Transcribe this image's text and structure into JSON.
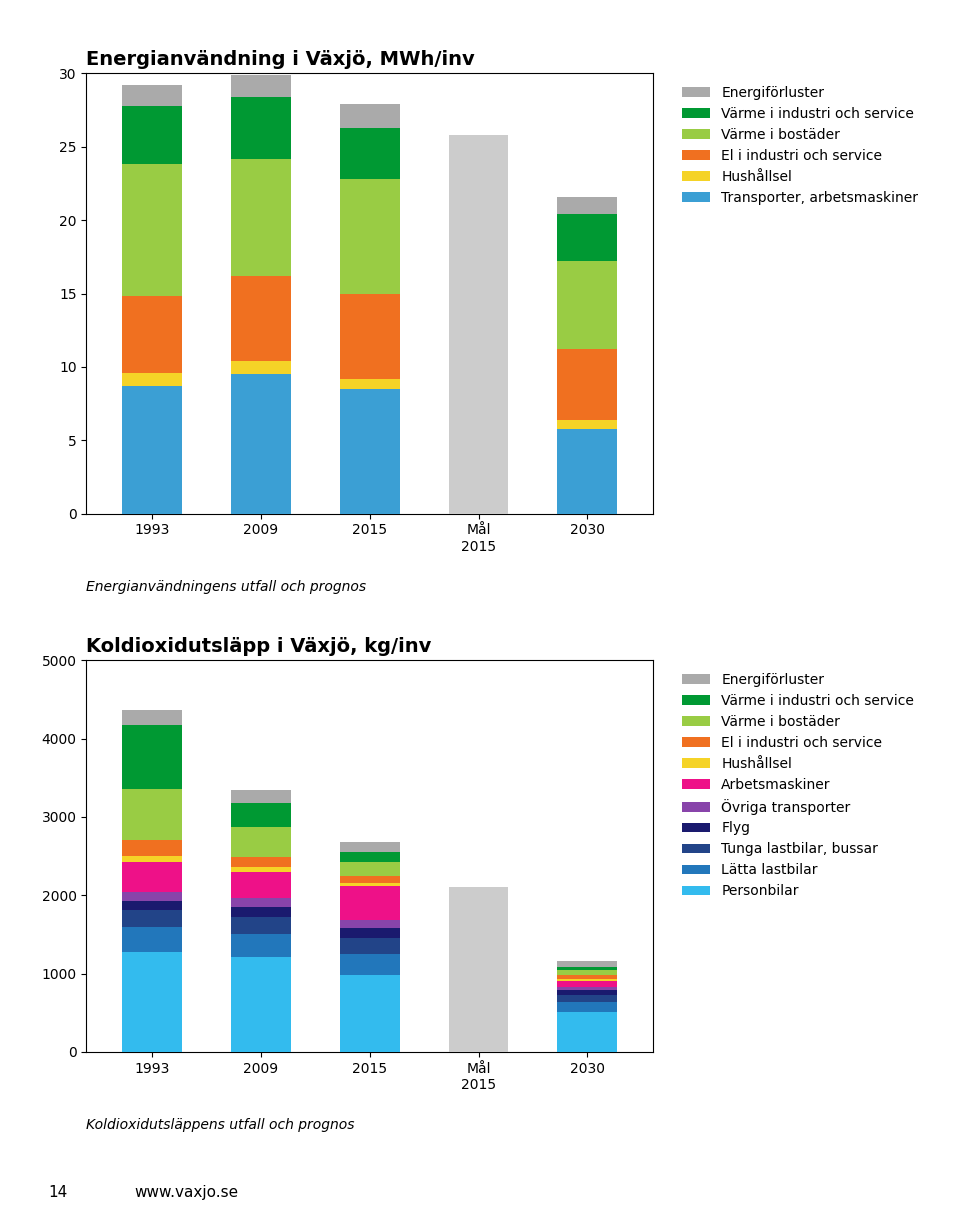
{
  "chart_data": [
    {
      "type": "bar",
      "stacked": true,
      "legend": "upper left",
      "title": "Energianvändning i Växjö, MWh/inv",
      "subtitle": "Energianvändningens utfall och prognos",
      "categories": [
        "1993",
        "2009",
        "2015",
        "Mål\n2015",
        "2030"
      ],
      "ylim": [
        0,
        30
      ],
      "yticks": [
        0,
        5,
        10,
        15,
        20,
        25,
        30
      ],
      "series": [
        {
          "name": "Transporter, arbetsmaskiner",
          "color": "#3b9fd4",
          "values": [
            8.7,
            9.5,
            8.5,
            0,
            5.8
          ]
        },
        {
          "name": "Hushållsel",
          "color": "#f5d327",
          "values": [
            0.9,
            0.9,
            0.7,
            0,
            0.6
          ]
        },
        {
          "name": "El i industri och service",
          "color": "#f07020",
          "values": [
            5.2,
            5.8,
            5.8,
            0,
            4.8
          ]
        },
        {
          "name": "Värme i bostäder",
          "color": "#99cc44",
          "values": [
            9.0,
            8.0,
            7.8,
            0,
            6.0
          ]
        },
        {
          "name": "Värme i industri och service",
          "color": "#009933",
          "values": [
            4.0,
            4.2,
            3.5,
            0,
            3.2
          ]
        },
        {
          "name": "Energiförluster",
          "color": "#aaaaaa",
          "values": [
            1.4,
            1.5,
            1.6,
            0,
            1.2
          ]
        },
        {
          "color": "#cccccc",
          "values": [
            null,
            null,
            null,
            25.8,
            null
          ]
        }
      ]
    },
    {
      "type": "bar",
      "stacked": true,
      "legend": "upper left",
      "title": "Koldioxidutsläpp i Växjö, kg/inv",
      "subtitle": "Koldioxidutsläppens utfall och prognos",
      "categories": [
        "1993",
        "2009",
        "2015",
        "Mål\n2015",
        "2030"
      ],
      "ylim": [
        0,
        5000
      ],
      "yticks": [
        0,
        1000,
        2000,
        3000,
        4000,
        5000
      ],
      "series": [
        {
          "name": "Personbilar",
          "color": "#33bbee",
          "values": [
            1280,
            1210,
            980,
            0,
            510
          ]
        },
        {
          "name": "Lätta lastbilar",
          "color": "#2277bb",
          "values": [
            320,
            290,
            270,
            0,
            130
          ]
        },
        {
          "name": "Tunga lastbilar, bussar",
          "color": "#224488",
          "values": [
            210,
            220,
            200,
            0,
            90
          ]
        },
        {
          "name": "Flyg",
          "color": "#1a1a6e",
          "values": [
            120,
            130,
            130,
            0,
            55
          ]
        },
        {
          "name": "Övriga transporter",
          "color": "#8844aa",
          "values": [
            110,
            110,
            110,
            0,
            45
          ]
        },
        {
          "name": "Arbetsmaskiner",
          "color": "#ee1188",
          "values": [
            380,
            340,
            430,
            0,
            75
          ]
        },
        {
          "name": "Hushållsel",
          "color": "#f5d327",
          "values": [
            80,
            60,
            40,
            0,
            25
          ]
        },
        {
          "name": "El i industri och service",
          "color": "#f07020",
          "values": [
            210,
            130,
            80,
            0,
            55
          ]
        },
        {
          "name": "Värme i bostäder",
          "color": "#99cc44",
          "values": [
            650,
            380,
            180,
            0,
            60
          ]
        },
        {
          "name": "Värme i industri och service",
          "color": "#009933",
          "values": [
            820,
            310,
            130,
            0,
            40
          ]
        },
        {
          "name": "Energiförluster",
          "color": "#aaaaaa",
          "values": [
            190,
            170,
            130,
            0,
            75
          ]
        },
        {
          "color": "#cccccc",
          "values": [
            null,
            null,
            null,
            2100,
            null
          ]
        }
      ],
      "annotations": [
        "14",
        "www.vaxjo.se"
      ]
    }
  ]
}
